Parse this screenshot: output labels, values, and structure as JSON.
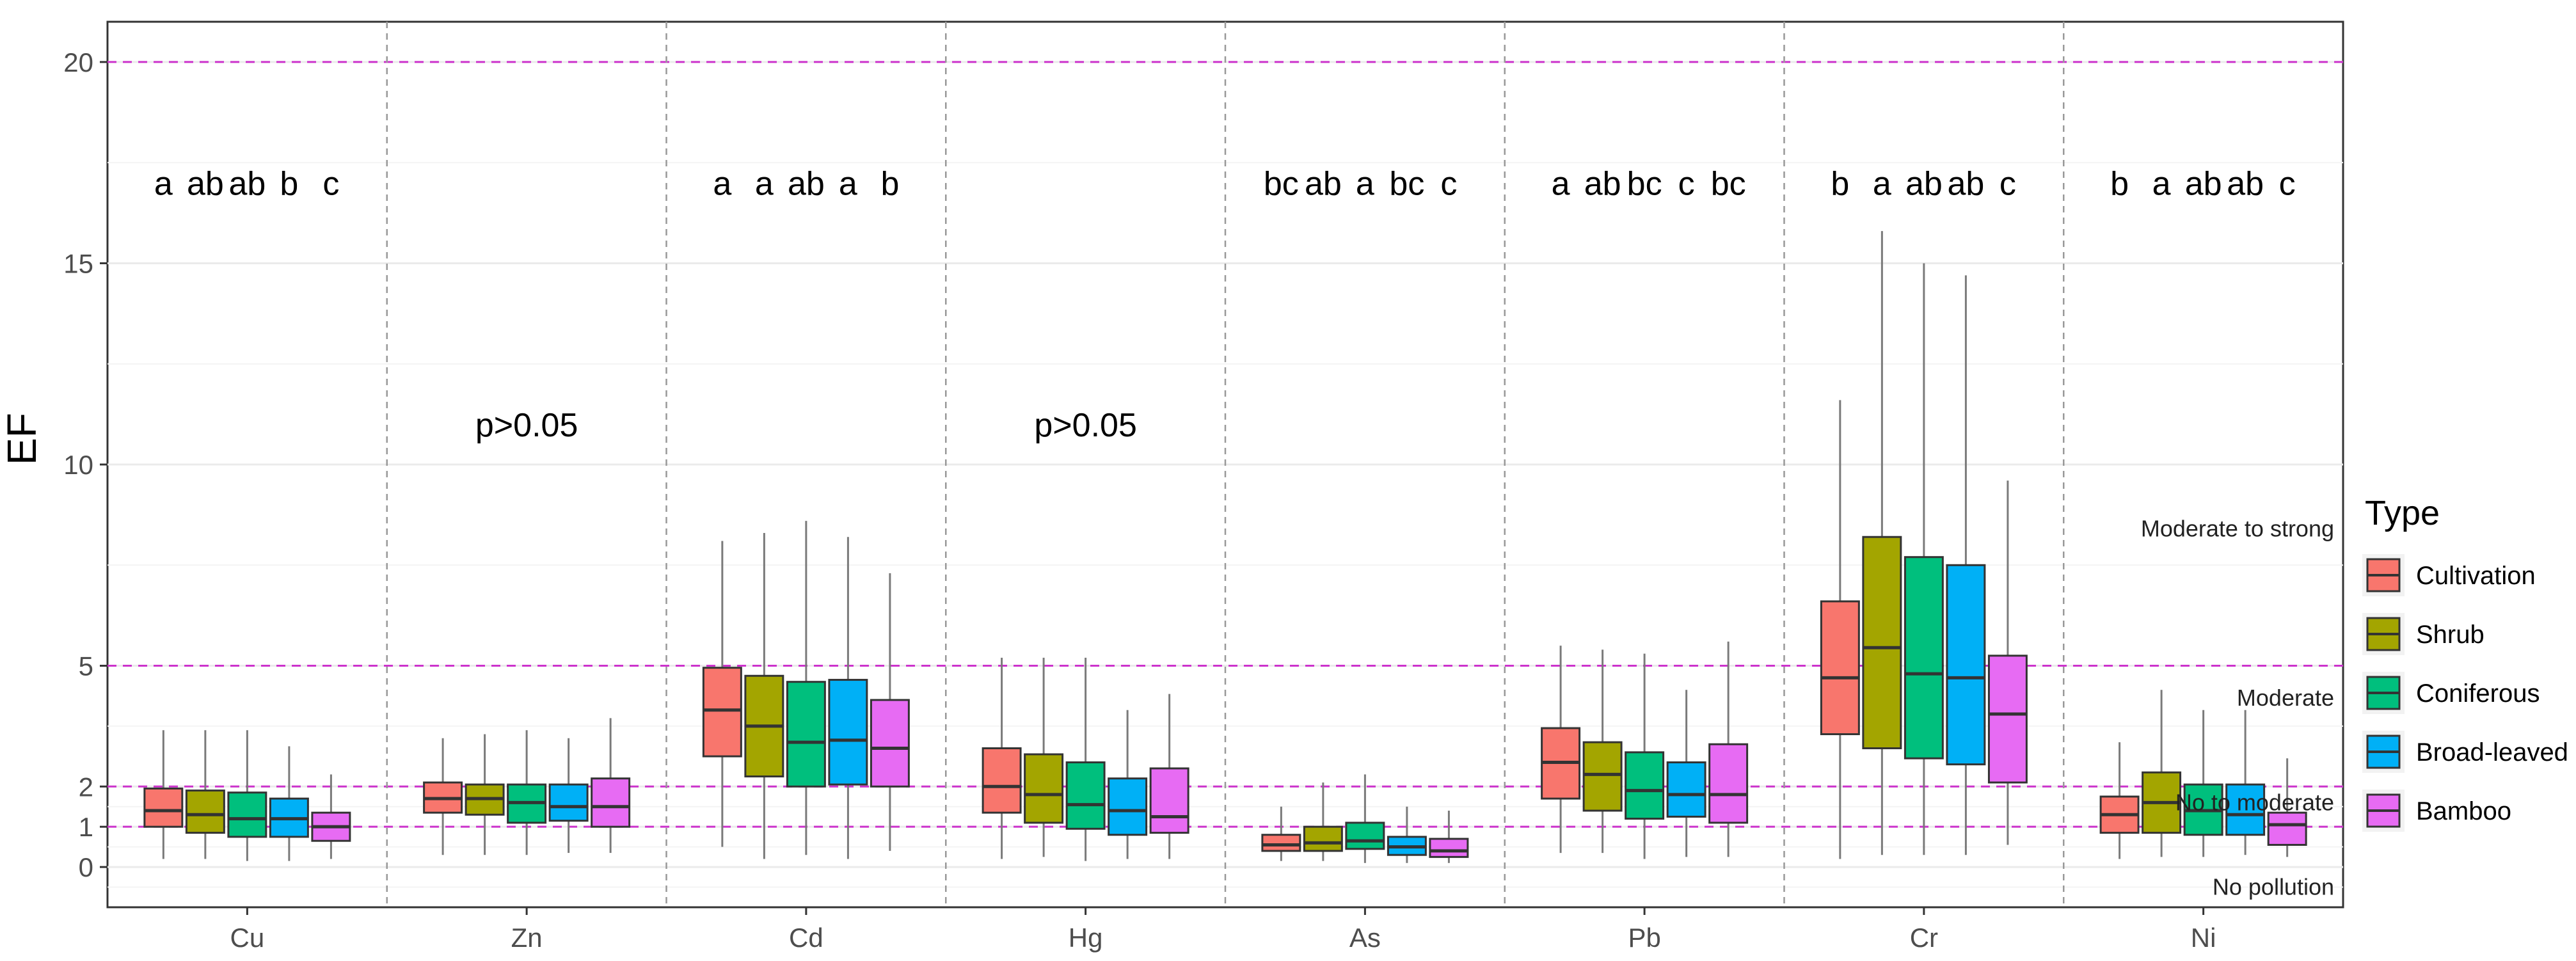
{
  "chart_data": {
    "type": "box",
    "ylabel": "EF",
    "ylim": [
      -1,
      21
    ],
    "yticks": [
      0,
      1,
      2,
      5,
      10,
      15,
      20
    ],
    "categories": [
      "Cu",
      "Zn",
      "Cd",
      "Hg",
      "As",
      "Pb",
      "Cr",
      "Ni"
    ],
    "legend": {
      "title": "Type",
      "placement": "right",
      "items": [
        {
          "name": "Cultivation",
          "color": "#F8766D"
        },
        {
          "name": "Shrub",
          "color": "#A3A500"
        },
        {
          "name": "Coniferous",
          "color": "#00BF7D"
        },
        {
          "name": "Broad-leaved",
          "color": "#00B0F6"
        },
        {
          "name": "Bamboo",
          "color": "#E76BF3"
        }
      ]
    },
    "thresholds": [
      {
        "value": 1,
        "color": "#CC33CC"
      },
      {
        "value": 2,
        "color": "#CC33CC"
      },
      {
        "value": 5,
        "color": "#CC33CC"
      },
      {
        "value": 20,
        "color": "#CC33CC"
      }
    ],
    "zone_labels": [
      {
        "text": "No pollution",
        "y": -0.5
      },
      {
        "text": "No to moderate",
        "y": 1.6
      },
      {
        "text": "Moderate",
        "y": 4.2
      },
      {
        "text": "Moderate to strong",
        "y": 8.4
      }
    ],
    "groups": [
      {
        "category": "Cu",
        "letters": [
          "a",
          "ab",
          "ab",
          "b",
          "c"
        ],
        "note": "",
        "boxes": [
          {
            "min": 0.2,
            "q1": 1.0,
            "median": 1.4,
            "q3": 1.95,
            "max": 3.4
          },
          {
            "min": 0.2,
            "q1": 0.85,
            "median": 1.3,
            "q3": 1.9,
            "max": 3.4
          },
          {
            "min": 0.15,
            "q1": 0.75,
            "median": 1.2,
            "q3": 1.85,
            "max": 3.4
          },
          {
            "min": 0.15,
            "q1": 0.75,
            "median": 1.2,
            "q3": 1.7,
            "max": 3.0
          },
          {
            "min": 0.2,
            "q1": 0.65,
            "median": 1.0,
            "q3": 1.35,
            "max": 2.3
          }
        ]
      },
      {
        "category": "Zn",
        "letters": [],
        "note": "p>0.05",
        "boxes": [
          {
            "min": 0.3,
            "q1": 1.35,
            "median": 1.7,
            "q3": 2.1,
            "max": 3.2
          },
          {
            "min": 0.3,
            "q1": 1.3,
            "median": 1.7,
            "q3": 2.05,
            "max": 3.3
          },
          {
            "min": 0.3,
            "q1": 1.1,
            "median": 1.6,
            "q3": 2.05,
            "max": 3.4
          },
          {
            "min": 0.35,
            "q1": 1.15,
            "median": 1.5,
            "q3": 2.05,
            "max": 3.2
          },
          {
            "min": 0.35,
            "q1": 1.0,
            "median": 1.5,
            "q3": 2.2,
            "max": 3.7
          }
        ]
      },
      {
        "category": "Cd",
        "letters": [
          "a",
          "a",
          "ab",
          "a",
          "b"
        ],
        "note": "",
        "boxes": [
          {
            "min": 0.5,
            "q1": 2.75,
            "median": 3.9,
            "q3": 4.95,
            "max": 8.1
          },
          {
            "min": 0.2,
            "q1": 2.25,
            "median": 3.5,
            "q3": 4.75,
            "max": 8.3
          },
          {
            "min": 0.3,
            "q1": 2.0,
            "median": 3.1,
            "q3": 4.6,
            "max": 8.6
          },
          {
            "min": 0.2,
            "q1": 2.05,
            "median": 3.15,
            "q3": 4.65,
            "max": 8.2
          },
          {
            "min": 0.4,
            "q1": 2.0,
            "median": 2.95,
            "q3": 4.15,
            "max": 7.3
          }
        ]
      },
      {
        "category": "Hg",
        "letters": [],
        "note": "p>0.05",
        "boxes": [
          {
            "min": 0.2,
            "q1": 1.35,
            "median": 2.0,
            "q3": 2.95,
            "max": 5.2
          },
          {
            "min": 0.25,
            "q1": 1.1,
            "median": 1.8,
            "q3": 2.8,
            "max": 5.2
          },
          {
            "min": 0.15,
            "q1": 0.95,
            "median": 1.55,
            "q3": 2.6,
            "max": 5.2
          },
          {
            "min": 0.2,
            "q1": 0.8,
            "median": 1.4,
            "q3": 2.2,
            "max": 3.9
          },
          {
            "min": 0.2,
            "q1": 0.85,
            "median": 1.25,
            "q3": 2.45,
            "max": 4.3
          }
        ]
      },
      {
        "category": "As",
        "letters": [
          "bc",
          "ab",
          "a",
          "bc",
          "c"
        ],
        "note": "",
        "boxes": [
          {
            "min": 0.15,
            "q1": 0.4,
            "median": 0.55,
            "q3": 0.8,
            "max": 1.5
          },
          {
            "min": 0.15,
            "q1": 0.4,
            "median": 0.6,
            "q3": 1.0,
            "max": 2.1
          },
          {
            "min": 0.1,
            "q1": 0.45,
            "median": 0.65,
            "q3": 1.1,
            "max": 2.3
          },
          {
            "min": 0.1,
            "q1": 0.3,
            "median": 0.5,
            "q3": 0.75,
            "max": 1.5
          },
          {
            "min": 0.1,
            "q1": 0.25,
            "median": 0.4,
            "q3": 0.7,
            "max": 1.4
          }
        ]
      },
      {
        "category": "Pb",
        "letters": [
          "a",
          "ab",
          "bc",
          "c",
          "bc"
        ],
        "note": "",
        "boxes": [
          {
            "min": 0.35,
            "q1": 1.7,
            "median": 2.6,
            "q3": 3.45,
            "max": 5.5
          },
          {
            "min": 0.35,
            "q1": 1.4,
            "median": 2.3,
            "q3": 3.1,
            "max": 5.4
          },
          {
            "min": 0.2,
            "q1": 1.2,
            "median": 1.9,
            "q3": 2.85,
            "max": 5.3
          },
          {
            "min": 0.25,
            "q1": 1.25,
            "median": 1.8,
            "q3": 2.6,
            "max": 4.4
          },
          {
            "min": 0.25,
            "q1": 1.1,
            "median": 1.8,
            "q3": 3.05,
            "max": 5.6
          }
        ]
      },
      {
        "category": "Cr",
        "letters": [
          "b",
          "a",
          "ab",
          "ab",
          "c"
        ],
        "note": "",
        "boxes": [
          {
            "min": 0.2,
            "q1": 3.3,
            "median": 4.7,
            "q3": 6.6,
            "max": 11.6
          },
          {
            "min": 0.3,
            "q1": 2.95,
            "median": 5.45,
            "q3": 8.2,
            "max": 15.8
          },
          {
            "min": 0.3,
            "q1": 2.7,
            "median": 4.8,
            "q3": 7.7,
            "max": 15.0
          },
          {
            "min": 0.3,
            "q1": 2.55,
            "median": 4.7,
            "q3": 7.5,
            "max": 14.7
          },
          {
            "min": 0.55,
            "q1": 2.1,
            "median": 3.8,
            "q3": 5.25,
            "max": 9.6
          }
        ]
      },
      {
        "category": "Ni",
        "letters": [
          "b",
          "a",
          "ab",
          "ab",
          "c"
        ],
        "note": "",
        "boxes": [
          {
            "min": 0.2,
            "q1": 0.85,
            "median": 1.3,
            "q3": 1.75,
            "max": 3.1
          },
          {
            "min": 0.25,
            "q1": 0.85,
            "median": 1.6,
            "q3": 2.35,
            "max": 4.4
          },
          {
            "min": 0.25,
            "q1": 0.8,
            "median": 1.4,
            "q3": 2.05,
            "max": 3.9
          },
          {
            "min": 0.3,
            "q1": 0.8,
            "median": 1.3,
            "q3": 2.05,
            "max": 3.9
          },
          {
            "min": 0.25,
            "q1": 0.55,
            "median": 1.05,
            "q3": 1.35,
            "max": 2.7
          }
        ]
      }
    ]
  }
}
